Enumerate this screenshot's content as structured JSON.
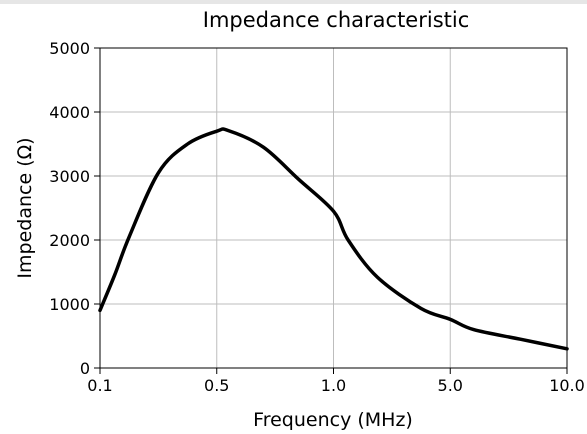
{
  "chart_data": {
    "type": "line",
    "title": "Impedance characteristic",
    "xlabel": "Frequency (MHz)",
    "ylabel": "Impedance (Ω)",
    "x_categories": [
      "0.1",
      "0.5",
      "1.0",
      "5.0",
      "10.0"
    ],
    "ylim": [
      0,
      5000
    ],
    "yticks": [
      0,
      1000,
      2000,
      3000,
      4000,
      5000
    ],
    "grid": true,
    "series": [
      {
        "values": [
          {
            "x": 0.1,
            "y": 900
          },
          {
            "x": 0.15,
            "y": 1450
          },
          {
            "x": 0.2,
            "y": 2050
          },
          {
            "x": 0.3,
            "y": 3050
          },
          {
            "x": 0.4,
            "y": 3500
          },
          {
            "x": 0.5,
            "y": 3700
          },
          {
            "x": 0.55,
            "y": 3710
          },
          {
            "x": 0.7,
            "y": 3450
          },
          {
            "x": 0.85,
            "y": 2950
          },
          {
            "x": 1.0,
            "y": 2450
          },
          {
            "x": 1.5,
            "y": 2000
          },
          {
            "x": 2.5,
            "y": 1420
          },
          {
            "x": 4.0,
            "y": 930
          },
          {
            "x": 5.0,
            "y": 760
          },
          {
            "x": 6.0,
            "y": 600
          },
          {
            "x": 8.0,
            "y": 450
          },
          {
            "x": 10.0,
            "y": 300
          }
        ]
      }
    ]
  }
}
